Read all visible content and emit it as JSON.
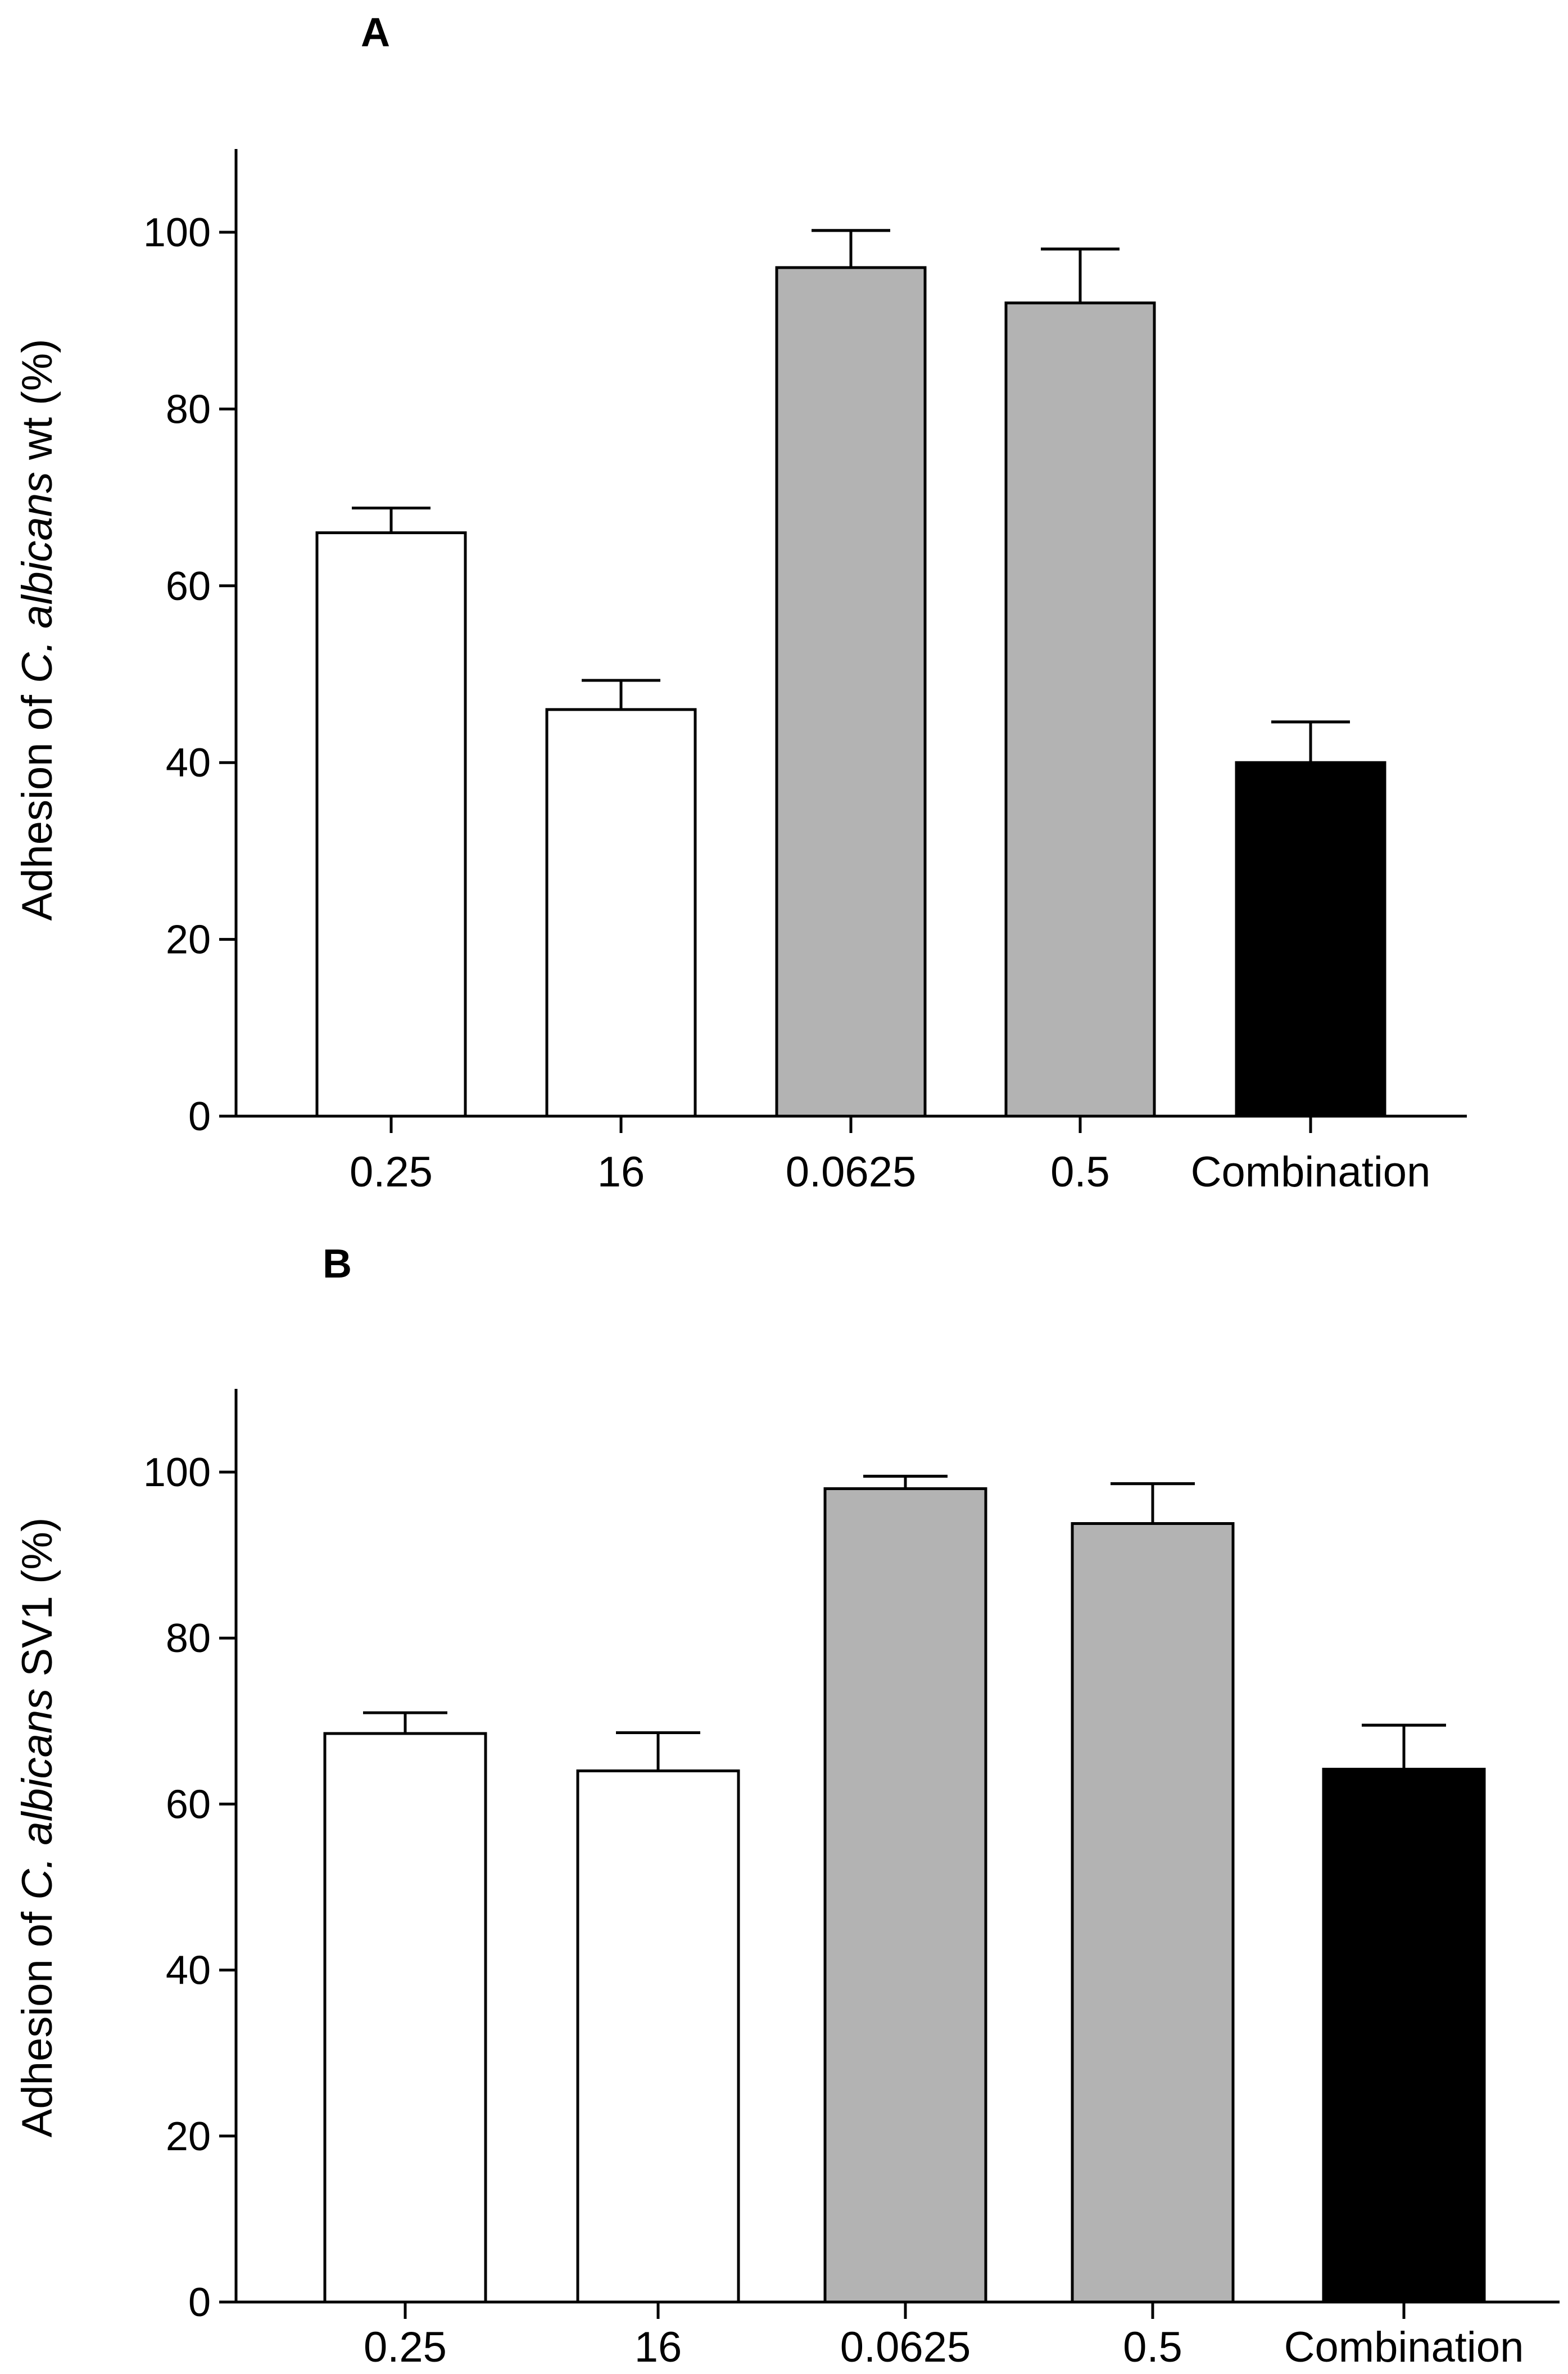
{
  "chart_data": [
    {
      "type": "bar",
      "panel_label": "A",
      "title": "",
      "xlabel": "",
      "ylabel_parts": [
        "Adhesion of ",
        "C. albicans",
        " wt (%)"
      ],
      "ylim": [
        0,
        110
      ],
      "yticks": [
        0,
        20,
        40,
        60,
        80,
        100
      ],
      "grid": false,
      "categories": [
        "0.25",
        "16",
        "0.0625",
        "0.5",
        "Combination"
      ],
      "values": [
        66,
        46,
        96,
        92,
        40
      ],
      "errors": [
        2.8,
        3.3,
        4.2,
        6.1,
        4.6
      ],
      "fill_colors": [
        "#ffffff",
        "#ffffff",
        "#b3b3b3",
        "#b3b3b3",
        "#000000"
      ]
    },
    {
      "type": "bar",
      "panel_label": "B",
      "title": "",
      "xlabel": "",
      "ylabel_parts": [
        "Adhesion of ",
        "C. albicans",
        " SV1 (%)"
      ],
      "ylim": [
        0,
        110
      ],
      "yticks": [
        0,
        20,
        40,
        60,
        80,
        100
      ],
      "grid": false,
      "categories": [
        "0.25",
        "16",
        "0.0625",
        "0.5",
        "Combination"
      ],
      "values": [
        68.5,
        64,
        98,
        93.8,
        64.2
      ],
      "errors": [
        2.5,
        4.6,
        1.5,
        4.8,
        5.3
      ],
      "fill_colors": [
        "#ffffff",
        "#ffffff",
        "#b3b3b3",
        "#b3b3b3",
        "#000000"
      ]
    }
  ]
}
